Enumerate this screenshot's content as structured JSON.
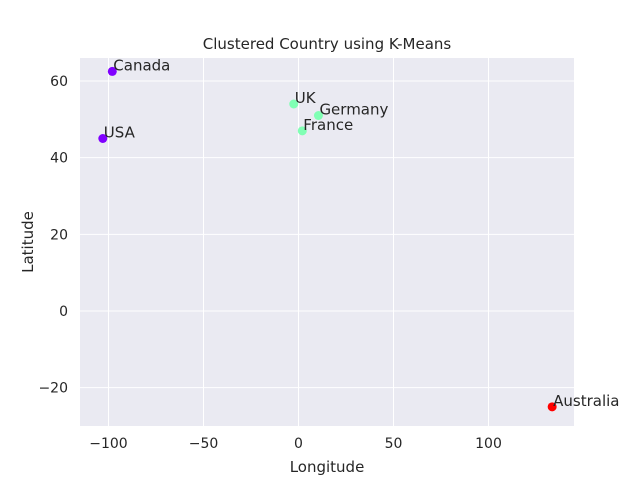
{
  "chart_data": {
    "type": "scatter",
    "title": "Clustered Country using K-Means",
    "xlabel": "Longitude",
    "ylabel": "Latitude",
    "xlim": [
      -115,
      145
    ],
    "ylim": [
      -30,
      66
    ],
    "xticks": [
      -100,
      -50,
      0,
      50,
      100
    ],
    "yticks": [
      -20,
      0,
      20,
      40,
      60
    ],
    "xtick_labels": [
      "−100",
      "−50",
      "0",
      "50",
      "100"
    ],
    "ytick_labels": [
      "−20",
      "0",
      "20",
      "40",
      "60"
    ],
    "grid": true,
    "legend": false,
    "points": [
      {
        "label": "USA",
        "x": -103,
        "y": 45,
        "cluster": 0
      },
      {
        "label": "Canada",
        "x": -98,
        "y": 62.5,
        "cluster": 0
      },
      {
        "label": "France",
        "x": 2,
        "y": 47,
        "cluster": 1
      },
      {
        "label": "UK",
        "x": -2.5,
        "y": 54,
        "cluster": 1
      },
      {
        "label": "Germany",
        "x": 10.5,
        "y": 51,
        "cluster": 1
      },
      {
        "label": "Australia",
        "x": 133.5,
        "y": -25,
        "cluster": 2
      }
    ],
    "cluster_colors": [
      "#8000ff",
      "#80ffb4",
      "#ff0000"
    ],
    "background_color": "#eaeaf2",
    "grid_color": "#ffffff"
  }
}
